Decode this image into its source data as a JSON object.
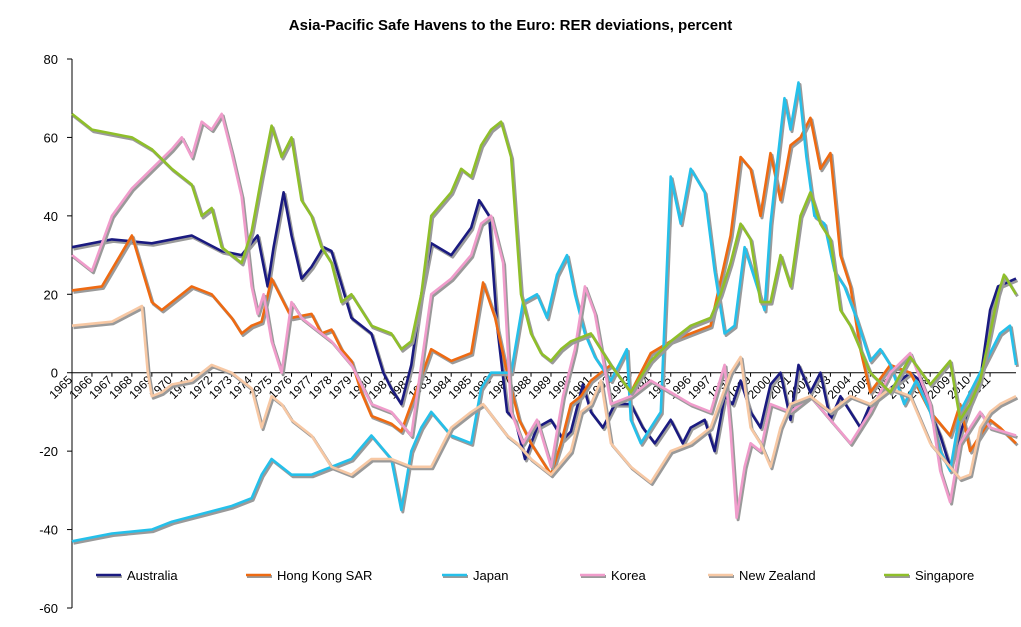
{
  "chart_data": {
    "type": "line",
    "title": "Asia-Pacific Safe Havens to the Euro: RER deviations, percent",
    "xlabel": "",
    "ylabel": "",
    "ylim": [
      -60,
      80
    ],
    "yticks": [
      -60,
      -40,
      -20,
      0,
      20,
      40,
      60,
      80
    ],
    "xlim": [
      1965,
      2012.3
    ],
    "x_tick_labels": [
      "1965",
      "1966",
      "1967",
      "1968",
      "1969",
      "1970",
      "1971",
      "1972",
      "1973",
      "1974",
      "1975",
      "1976",
      "1977",
      "1978",
      "1979",
      "1980",
      "1981",
      "1982",
      "1983",
      "1984",
      "1985",
      "1986",
      "1987",
      "1988",
      "1989",
      "1990",
      "1991",
      "1992",
      "1993",
      "1994",
      "1995",
      "1996",
      "1997",
      "1998",
      "1999",
      "2000",
      "2001",
      "2002",
      "2003",
      "2004",
      "2005",
      "2006",
      "2007",
      "2008",
      "2009",
      "2010",
      "2011"
    ],
    "legend_position": "bottom",
    "series": [
      {
        "name": "Australia",
        "color": "#1a1a80",
        "x": [
          1965,
          1967,
          1969,
          1971,
          1972.5,
          1973.5,
          1974.3,
          1974.8,
          1975.1,
          1975.6,
          1976,
          1976.5,
          1977,
          1977.6,
          1978,
          1979,
          1980,
          1980.6,
          1981,
          1981.5,
          1982,
          1982.5,
          1983,
          1984,
          1985,
          1985.4,
          1985.9,
          1986.3,
          1986.8,
          1987.2,
          1987.7,
          1988.3,
          1989,
          1989.6,
          1990,
          1990.6,
          1991,
          1991.6,
          1992.2,
          1993,
          1993.6,
          1994.2,
          1995,
          1995.6,
          1996,
          1996.7,
          1997.2,
          1997.7,
          1998.1,
          1998.5,
          1999,
          1999.5,
          2000,
          2000.5,
          2001,
          2001.4,
          2002,
          2002.5,
          2003,
          2003.5,
          2004,
          2004.5,
          2005,
          2006,
          2007,
          2007.5,
          2008,
          2008.5,
          2009,
          2009.6,
          2010,
          2010.5,
          2011,
          2011.4,
          2012.3
        ],
        "values": [
          32,
          34,
          33,
          35,
          31,
          30,
          35,
          22,
          32,
          46,
          35,
          24,
          27,
          32,
          31,
          14,
          10,
          0,
          -4,
          -8,
          2,
          20,
          33,
          30,
          37,
          44,
          40,
          12,
          -10,
          -12,
          -22,
          -14,
          -12,
          -17,
          -15,
          -3,
          -10,
          -14,
          -8,
          -8,
          -14,
          -18,
          -12,
          -18,
          -14,
          -12,
          -20,
          -6,
          -8,
          -2,
          -10,
          -14,
          -3,
          0,
          -12,
          2,
          -5,
          0,
          -12,
          -6,
          -10,
          -14,
          -8,
          -4,
          0,
          -2,
          -10,
          -16,
          -24,
          -14,
          -8,
          -2,
          16,
          22,
          24
        ]
      },
      {
        "name": "Hong Kong SAR",
        "color": "#ee6a12",
        "x": [
          1965,
          1966.5,
          1968,
          1969,
          1969.5,
          1970,
          1971,
          1972,
          1973,
          1973.5,
          1974,
          1974.5,
          1975,
          1976,
          1977,
          1977.5,
          1978,
          1978.5,
          1979,
          1979.5,
          1980,
          1981,
          1981.5,
          1982,
          1983,
          1984,
          1985,
          1985.6,
          1986.2,
          1986.8,
          1987.4,
          1988,
          1988.5,
          1989,
          1989.5,
          1990,
          1990.5,
          1991,
          1992,
          1993,
          1994,
          1995,
          1996,
          1997,
          1998,
          1998.5,
          1999,
          1999.5,
          2000,
          2000.5,
          2001,
          2001.5,
          2002,
          2002.5,
          2003,
          2003.5,
          2004,
          2004.5,
          2005,
          2006,
          2007,
          2008,
          2009,
          2009.5,
          2010,
          2010.5,
          2011,
          2011.5,
          2012.3
        ],
        "values": [
          21,
          22,
          35,
          18,
          16,
          18,
          22,
          20,
          14,
          10,
          12,
          13,
          24,
          14,
          15,
          10,
          11,
          6,
          3,
          -5,
          -11,
          -13,
          -15,
          -8,
          6,
          3,
          5,
          23,
          14,
          0,
          -12,
          -18,
          -22,
          -26,
          -18,
          -8,
          -6,
          -2,
          2,
          -5,
          5,
          8,
          10,
          12,
          35,
          55,
          52,
          40,
          56,
          44,
          58,
          60,
          65,
          52,
          56,
          30,
          22,
          6,
          -5,
          2,
          0,
          -10,
          -16,
          -8,
          -20,
          -16,
          -12,
          -14,
          -18
        ]
      },
      {
        "name": "Japan",
        "color": "#25c0ea",
        "x": [
          1965,
          1967,
          1969,
          1970,
          1971.5,
          1973,
          1974,
          1974.5,
          1975,
          1976,
          1977,
          1978,
          1979,
          1980,
          1981,
          1981.5,
          1982,
          1982.5,
          1983,
          1984,
          1985,
          1985.5,
          1986,
          1987,
          1987.6,
          1988.3,
          1988.8,
          1989.3,
          1989.8,
          1990.2,
          1990.7,
          1991.2,
          1992,
          1992.8,
          1993,
          1993.5,
          1994,
          1994.5,
          1995,
          1995.5,
          1996,
          1996.7,
          1997.2,
          1997.7,
          1998.2,
          1998.7,
          1999.2,
          1999.7,
          2000,
          2000.3,
          2000.7,
          2001,
          2001.4,
          2001.8,
          2002.2,
          2002.7,
          2003.2,
          2003.7,
          2004.3,
          2005,
          2005.5,
          2006,
          2006.7,
          2007.3,
          2008,
          2008.5,
          2009,
          2009.5,
          2010,
          2011,
          2011.5,
          2012,
          2012.3
        ],
        "values": [
          -43,
          -41,
          -40,
          -38,
          -36,
          -34,
          -32,
          -26,
          -22,
          -26,
          -26,
          -24,
          -22,
          -16,
          -22,
          -35,
          -20,
          -14,
          -10,
          -16,
          -18,
          -4,
          0,
          0,
          18,
          20,
          14,
          25,
          30,
          20,
          10,
          4,
          -2,
          6,
          -12,
          -18,
          -14,
          -10,
          50,
          38,
          52,
          46,
          26,
          10,
          12,
          32,
          24,
          16,
          38,
          52,
          70,
          62,
          74,
          55,
          40,
          38,
          26,
          22,
          14,
          3,
          6,
          2,
          -8,
          -2,
          -10,
          -20,
          -25,
          -10,
          -5,
          5,
          10,
          12,
          2
        ]
      },
      {
        "name": "Korea",
        "color": "#f09ccb",
        "x": [
          1965,
          1966,
          1967,
          1968,
          1969,
          1970,
          1970.5,
          1971,
          1971.5,
          1972,
          1972.5,
          1973,
          1973.5,
          1974,
          1974.3,
          1974.6,
          1975,
          1975.5,
          1976,
          1976.5,
          1977,
          1978,
          1979,
          1980,
          1981,
          1982,
          1983,
          1984,
          1985,
          1985.5,
          1986,
          1986.6,
          1987,
          1987.6,
          1988.3,
          1989,
          1989.6,
          1990.2,
          1990.7,
          1991.2,
          1992,
          1993,
          1994,
          1995,
          1996,
          1997,
          1997.7,
          1998,
          1998.3,
          1998.7,
          1999,
          1999.5,
          2000,
          2001,
          2002,
          2003,
          2004,
          2005,
          2006,
          2007,
          2008,
          2008.5,
          2009,
          2009.5,
          2010,
          2010.5,
          2011,
          2012.3
        ],
        "values": [
          30,
          26,
          40,
          47,
          52,
          57,
          60,
          55,
          64,
          62,
          66,
          56,
          45,
          22,
          15,
          20,
          8,
          0,
          18,
          14,
          12,
          8,
          2,
          -8,
          -10,
          -16,
          20,
          24,
          30,
          38,
          40,
          28,
          -10,
          -18,
          -12,
          -24,
          -6,
          6,
          22,
          15,
          -8,
          -6,
          -2,
          -5,
          -8,
          -10,
          2,
          -15,
          -37,
          -24,
          -18,
          -20,
          -8,
          -10,
          -6,
          -12,
          -18,
          -10,
          0,
          5,
          -8,
          -25,
          -33,
          -18,
          -14,
          -10,
          -14,
          -16
        ]
      },
      {
        "name": "New Zealand",
        "color": "#f7c8a4",
        "x": [
          1965,
          1967,
          1968.5,
          1968.8,
          1969,
          1969.5,
          1970,
          1971,
          1972,
          1973,
          1973.5,
          1974,
          1974.5,
          1975,
          1975.5,
          1976,
          1976.5,
          1977,
          1978,
          1979,
          1980,
          1981,
          1982,
          1983,
          1984,
          1985,
          1985.6,
          1986.2,
          1986.8,
          1987.3,
          1988,
          1988.5,
          1989,
          1990,
          1990.5,
          1991,
          1991.5,
          1992,
          1993,
          1994,
          1995,
          1996,
          1997,
          1998,
          1998.5,
          1999,
          1999.5,
          2000,
          2000.5,
          2001,
          2002,
          2003,
          2004,
          2005,
          2006,
          2007,
          2008,
          2009,
          2009.5,
          2010,
          2010.5,
          2011,
          2011.5,
          2012.3
        ],
        "values": [
          12,
          13,
          17,
          0,
          -6,
          -5,
          -3,
          -2,
          2,
          0,
          -2,
          -4,
          -14,
          -6,
          -8,
          -12,
          -14,
          -16,
          -24,
          -26,
          -22,
          -22,
          -24,
          -24,
          -14,
          -10,
          -8,
          -12,
          -16,
          -18,
          -22,
          -24,
          -26,
          -20,
          -10,
          -8,
          -2,
          -18,
          -24,
          -28,
          -20,
          -18,
          -14,
          0,
          4,
          -14,
          -18,
          -24,
          -14,
          -8,
          -6,
          -10,
          -6,
          -8,
          -4,
          -6,
          -18,
          -24,
          -27,
          -26,
          -14,
          -10,
          -8,
          -6
        ]
      },
      {
        "name": "Singapore",
        "color": "#8fbf2a",
        "x": [
          1965,
          1966,
          1967,
          1968,
          1969,
          1970,
          1971,
          1971.5,
          1972,
          1972.5,
          1973,
          1973.5,
          1974,
          1974.5,
          1975,
          1975.5,
          1976,
          1976.5,
          1977,
          1977.5,
          1978,
          1978.5,
          1979,
          1980,
          1981,
          1981.5,
          1982,
          1982.5,
          1983,
          1984,
          1984.5,
          1985,
          1985.5,
          1986,
          1986.5,
          1987,
          1987.5,
          1988,
          1988.5,
          1989,
          1989.5,
          1990,
          1991,
          1992,
          1993,
          1994,
          1995,
          1996,
          1997,
          1997.5,
          1998,
          1998.5,
          1999,
          1999.5,
          2000,
          2000.5,
          2001,
          2001.5,
          2002,
          2002.5,
          2003,
          2003.5,
          2004,
          2005,
          2006,
          2007,
          2008,
          2009,
          2009.5,
          2010,
          2010.5,
          2011,
          2011.4,
          2011.7,
          2012.3
        ],
        "values": [
          66,
          62,
          61,
          60,
          57,
          52,
          48,
          40,
          42,
          32,
          30,
          28,
          36,
          50,
          63,
          55,
          60,
          44,
          40,
          32,
          28,
          18,
          20,
          12,
          10,
          6,
          8,
          20,
          40,
          46,
          52,
          50,
          58,
          62,
          64,
          55,
          20,
          10,
          5,
          3,
          6,
          8,
          10,
          2,
          -5,
          3,
          8,
          12,
          14,
          20,
          28,
          38,
          34,
          18,
          18,
          30,
          22,
          40,
          46,
          38,
          34,
          16,
          12,
          0,
          -5,
          4,
          -3,
          3,
          -12,
          -8,
          -2,
          10,
          20,
          25,
          20
        ]
      }
    ]
  }
}
